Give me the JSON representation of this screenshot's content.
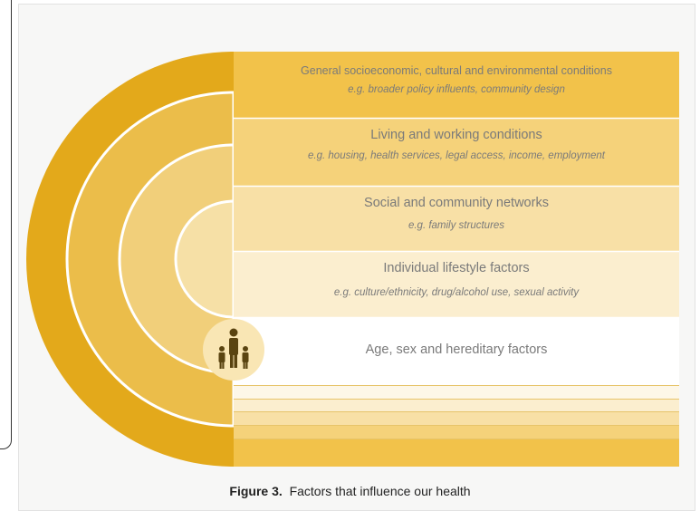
{
  "bands": [
    {
      "title": "General socioeconomic, cultural and environmental conditions",
      "example": "e.g. broader policy influents, community design"
    },
    {
      "title": "Living and working conditions",
      "example": "e.g. housing, health services, legal access, income, employment"
    },
    {
      "title": "Social and community networks",
      "example": "e.g. family structures"
    },
    {
      "title": "Individual lifestyle factors",
      "example": "e.g. culture/ethnicity, drug/alcohol use, sexual activity"
    },
    {
      "title": "Age, sex and hereditary factors",
      "example": ""
    }
  ],
  "caption": {
    "label": "Figure 3.",
    "text": "Factors that influence our health"
  },
  "colors": {
    "outer": "#e3a91b",
    "ring2": "#ebbd4a",
    "ring3": "#f1cf7a",
    "ring4": "#f6e0a6",
    "ring5": "#fbefd0",
    "center": "#f9e6b4",
    "figure": "#5a4410"
  },
  "icons": {
    "center": "family-icon"
  }
}
